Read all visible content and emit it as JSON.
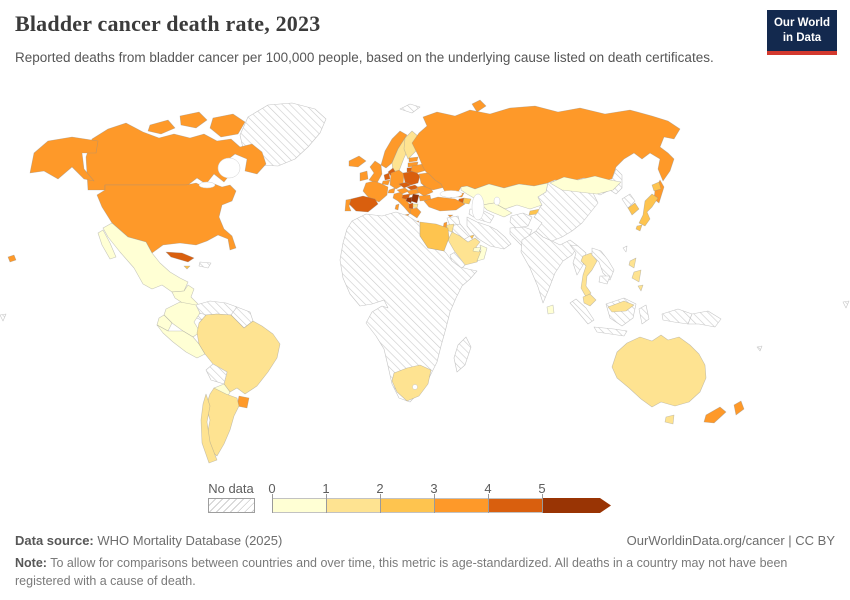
{
  "header": {
    "title": "Bladder cancer death rate, 2023",
    "subtitle": "Reported deaths from bladder cancer per 100,000 people, based on the underlying cause listed on death certificates.",
    "logo": {
      "line1": "Our World",
      "line2": "in Data",
      "bg_color": "#13294e",
      "accent_color": "#d3392e"
    }
  },
  "legend": {
    "no_data_label": "No data",
    "ticks": [
      "0",
      "1",
      "2",
      "3",
      "4",
      "5"
    ]
  },
  "footer": {
    "source_label": "Data source:",
    "source_text": " WHO Mortality Database (2025)",
    "attribution": "OurWorldinData.org/cancer | CC BY",
    "note_label": "Note:",
    "note_text": " To allow for comparisons between countries and over time, this metric is age-standardized. All deaths in a country may not have been registered with a cause of death."
  },
  "chart_data": {
    "type": "choropleth_map",
    "title": "Bladder cancer death rate, 2023",
    "metric": "Reported deaths from bladder cancer per 100,000 people (age-standardized)",
    "year": 2023,
    "legend_ticks": [
      0,
      1,
      2,
      3,
      4,
      5
    ],
    "bins": [
      {
        "label": "0-1",
        "color": "#ffffd4"
      },
      {
        "label": "1-2",
        "color": "#fee391"
      },
      {
        "label": "2-3",
        "color": "#fec44f"
      },
      {
        "label": "3-4",
        "color": "#fe9929"
      },
      {
        "label": "4-5",
        "color": "#d95f0e"
      },
      {
        "label": "5+",
        "color": "#993404"
      }
    ],
    "no_data": {
      "label": "No data",
      "pattern": "diagonal-hatch"
    },
    "country_bins": {
      "canada": "3-4",
      "united-states": "3-4",
      "alaska": "3-4",
      "hawaii": "3-4",
      "greenland": "no-data",
      "mexico": "0-1",
      "central-america": "0-1",
      "panama-nicaragua": "no-data",
      "cuba": "4-5",
      "jamaica": "2-3",
      "hispaniola": "no-data",
      "colombia": "0-1",
      "venezuela": "no-data",
      "guyana-suriname": "no-data",
      "ecuador": "0-1",
      "peru": "0-1",
      "brazil": "1-2",
      "bolivia": "no-data",
      "paraguay": "0-1",
      "chile": "1-2",
      "argentina": "1-2",
      "uruguay": "3-4",
      "iceland": "3-4",
      "united-kingdom": "3-4",
      "ireland": "3-4",
      "norway": "3-4",
      "sweden": "1-2",
      "finland": "1-2",
      "denmark": "4-5",
      "estonia": "3-4",
      "latvia": "3-4",
      "lithuania": "4-5",
      "netherlands": "4-5",
      "belgium": "3-4",
      "germany": "3-4",
      "france": "3-4",
      "spain": "4-5",
      "portugal": "3-4",
      "switzerland": "3-4",
      "italy": "3-4",
      "austria": "3-4",
      "czechia": "4-5",
      "poland": "4-5",
      "slovakia": "4-5",
      "hungary": "3-4",
      "croatia": "4-5",
      "bosnia": "5+",
      "serbia": "5+",
      "albania": "4-5",
      "north-macedonia": "1-2",
      "greece": "3-4",
      "romania": "3-4",
      "bulgaria": "3-4",
      "moldova": "3-4",
      "ukraine": "3-4",
      "belarus": "3-4",
      "russia": "3-4",
      "svalbard": "no-data",
      "turkey": "3-4",
      "cyprus": "3-4",
      "georgia": "3-4",
      "armenia": "4-5",
      "azerbaijan": "2-3",
      "syria": "no-data",
      "iraq": "no-data",
      "israel": "3-4",
      "jordan": "1-2",
      "saudi-arabia": "1-2",
      "yemen": "no-data",
      "kuwait": "2-3",
      "uae": "0-1",
      "oman": "0-1",
      "iran": "no-data",
      "kazakhstan": "0-1",
      "uzbekistan": "0-1",
      "turkmenistan": "no-data",
      "kyrgyzstan": "2-3",
      "tajikistan": "no-data",
      "afghanistan": "no-data",
      "pakistan": "no-data",
      "india": "no-data",
      "sri-lanka": "0-1",
      "china": "no-data",
      "mongolia": "0-1",
      "taiwan": "no-data",
      "north-korea": "no-data",
      "south-korea": "2-3",
      "japan": "2-3",
      "myanmar": "no-data",
      "thailand": "1-2",
      "vietnam": "no-data",
      "cambodia": "no-data",
      "malaysia": "1-2",
      "philippines": "1-2",
      "indonesia": "no-data",
      "papua-new-guinea": "no-data",
      "australia": "1-2",
      "new-zealand": "3-4",
      "fiji": "no-data",
      "pacific-islands": "no-data",
      "africa-mainland": "no-data",
      "egypt": "2-3",
      "south-africa": "1-2",
      "madagascar": "no-data"
    }
  }
}
